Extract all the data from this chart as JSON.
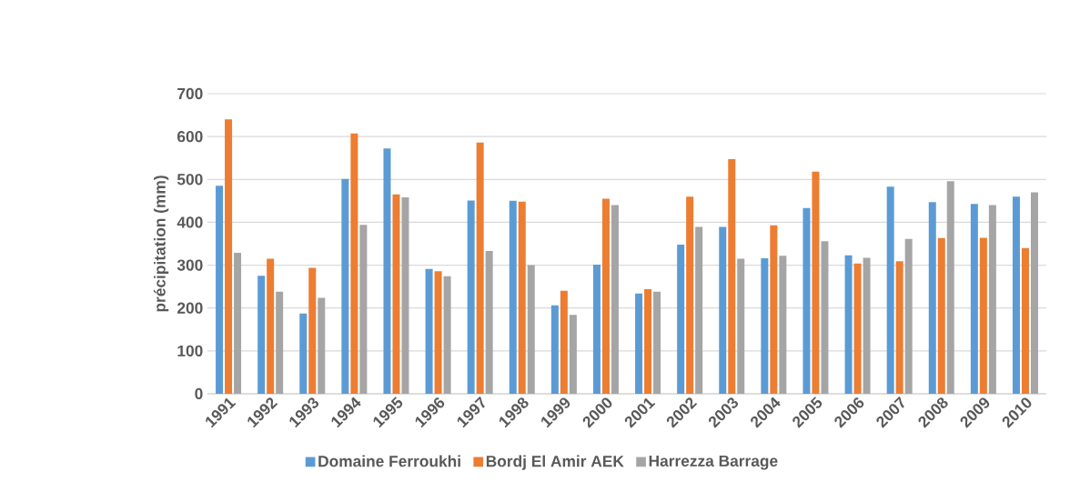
{
  "chart_data": {
    "type": "bar",
    "ylabel": "précipitation (mm)",
    "categories": [
      "1991",
      "1992",
      "1993",
      "1994",
      "1995",
      "1996",
      "1997",
      "1998",
      "1999",
      "2000",
      "2001",
      "2002",
      "2003",
      "2004",
      "2005",
      "2006",
      "2007",
      "2008",
      "2009",
      "2010"
    ],
    "series": [
      {
        "name": "Domaine Ferroukhi",
        "color": "#5b9bd5",
        "values": [
          485,
          275,
          187,
          501,
          572,
          291,
          451,
          450,
          206,
          301,
          234,
          348,
          389,
          316,
          433,
          323,
          483,
          447,
          443,
          460
        ]
      },
      {
        "name": "Bordj El Amir AEK",
        "color": "#ed7d31",
        "values": [
          640,
          315,
          294,
          607,
          465,
          286,
          586,
          448,
          240,
          455,
          244,
          460,
          547,
          393,
          518,
          304,
          309,
          363,
          364,
          340
        ]
      },
      {
        "name": "Harrezza Barrage",
        "color": "#a5a5a5",
        "values": [
          329,
          238,
          224,
          394,
          458,
          274,
          333,
          300,
          184,
          440,
          238,
          389,
          315,
          322,
          356,
          317,
          361,
          496,
          440,
          470
        ]
      }
    ],
    "ylim": [
      0,
      700
    ],
    "yticks": [
      0,
      100,
      200,
      300,
      400,
      500,
      600,
      700
    ],
    "grid": "y",
    "legend": "bottom"
  }
}
